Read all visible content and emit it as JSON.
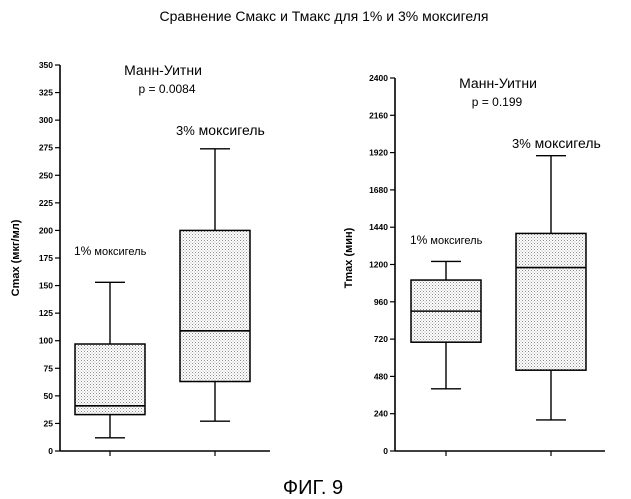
{
  "title": "Сравнение Смакс и Тмакс для 1% и 3% моксигеля",
  "caption": "ФИГ. 9",
  "chart_data": [
    {
      "type": "box",
      "ylabel": "Cmax (мкг/мл)",
      "ylim": [
        0,
        350
      ],
      "yticks": [
        0,
        25,
        50,
        75,
        100,
        125,
        150,
        175,
        200,
        225,
        250,
        275,
        300,
        325,
        350
      ],
      "stat_test": "Манн-Уитни",
      "p_value": "p = 0.0084",
      "groups": [
        {
          "label": "1% моксигель",
          "label_size": "small",
          "min": 12,
          "q1": 33,
          "median": 41,
          "q3": 97,
          "max": 153
        },
        {
          "label": "3% моксигель",
          "label_size": "big",
          "min": 27,
          "q1": 63,
          "median": 109,
          "q3": 200,
          "max": 274
        }
      ]
    },
    {
      "type": "box",
      "ylabel": "Tmax (мин)",
      "ylim": [
        0,
        2400
      ],
      "yticks": [
        0,
        240,
        480,
        720,
        960,
        1200,
        1440,
        1680,
        1920,
        2160,
        2400
      ],
      "stat_test": "Манн-Уитни",
      "p_value": "p = 0.199",
      "groups": [
        {
          "label": "1% моксигель",
          "label_size": "small",
          "min": 400,
          "q1": 700,
          "median": 900,
          "q3": 1100,
          "max": 1220
        },
        {
          "label": "3% моксигель",
          "label_size": "big",
          "min": 200,
          "q1": 520,
          "median": 1180,
          "q3": 1400,
          "max": 1900
        }
      ]
    }
  ]
}
